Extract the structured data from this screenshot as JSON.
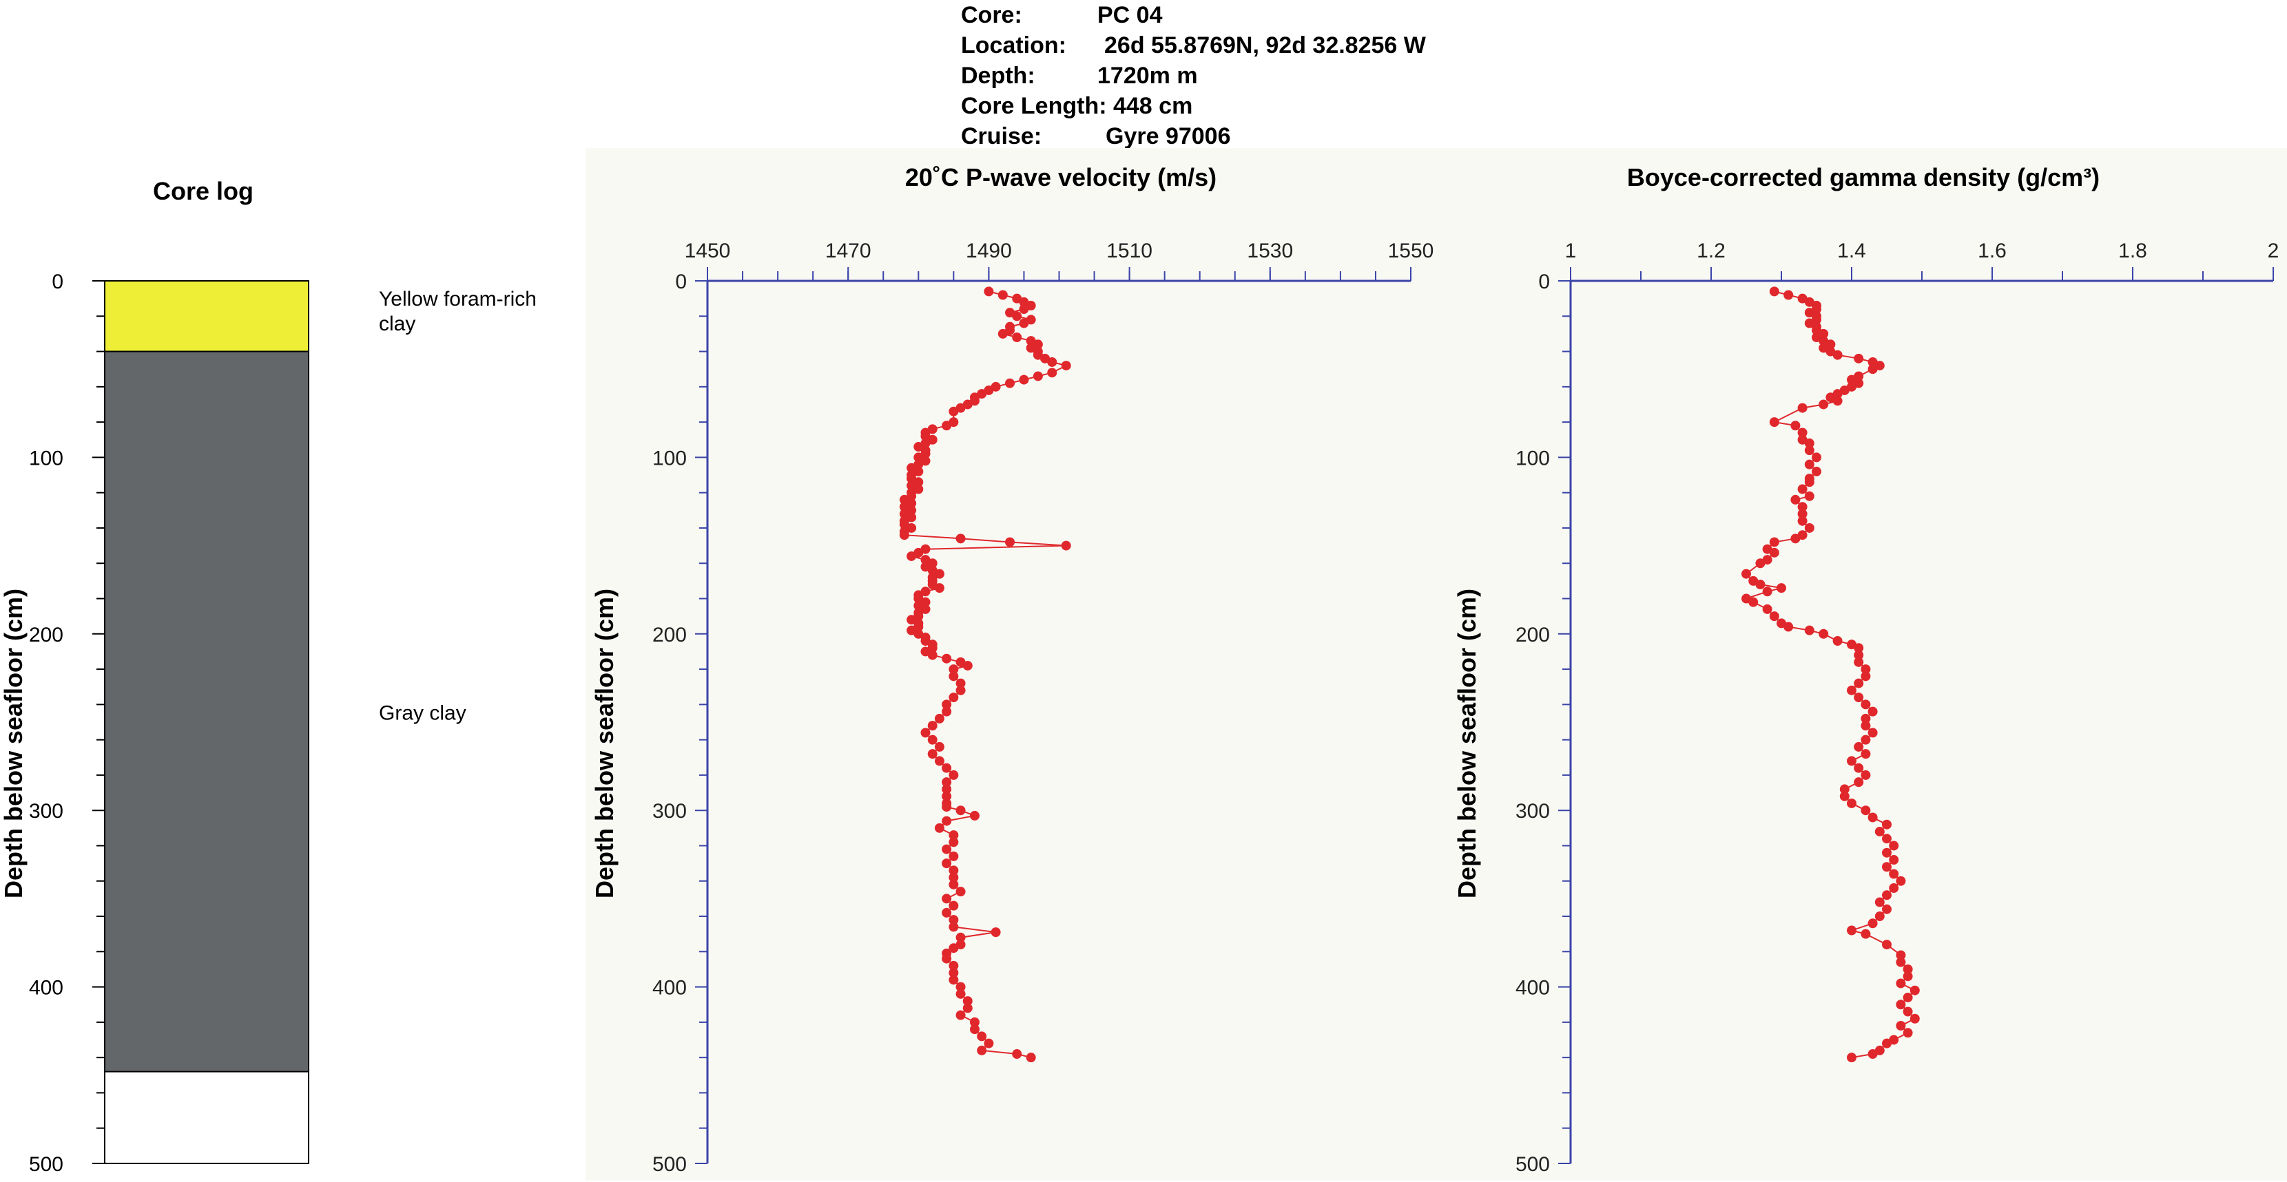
{
  "header": {
    "core": {
      "label": "Core:",
      "value": "PC 04"
    },
    "location": {
      "label": "Location:",
      "value": "26d 55.8769N, 92d 32.8256 W"
    },
    "depth": {
      "label": "Depth:",
      "value": "1720m m"
    },
    "core_length": {
      "label": "Core Length: 448 cm"
    },
    "cruise": {
      "label": "Cruise:",
      "value": "Gyre 97006"
    }
  },
  "colors": {
    "axis": "#3a44a8",
    "series": "#e0282c",
    "yellow_clay": "#eeee36",
    "gray_clay": "#646769",
    "panel_bg": "#f9f9f4"
  },
  "core_log": {
    "title": "Core log",
    "ylabel": "Depth below seafloor (cm)",
    "yticks": [
      "0",
      "100",
      "200",
      "300",
      "400",
      "500"
    ],
    "units": [
      {
        "label": "Yellow foram-rich clay",
        "lines": [
          "Yellow foram-rich",
          "clay"
        ],
        "top": 0,
        "bottom": 40,
        "color": "#eeee36"
      },
      {
        "label": "Gray clay",
        "lines": [
          "Gray clay"
        ],
        "top": 40,
        "bottom": 448,
        "color": "#646769"
      }
    ],
    "ylim": [
      0,
      500
    ]
  },
  "chart_data": [
    {
      "type": "scatter",
      "title": "20˚C P-wave velocity (m/s)",
      "xlabel": "",
      "ylabel": "Depth below seafloor (cm)",
      "xlim": [
        1450,
        1550
      ],
      "ylim": [
        0,
        500
      ],
      "xticks": [
        "1450",
        "1470",
        "1490",
        "1510",
        "1530",
        "1550"
      ],
      "yticks": [
        "0",
        "100",
        "200",
        "300",
        "400",
        "500"
      ],
      "points": [
        [
          1490,
          6
        ],
        [
          1492,
          8
        ],
        [
          1494,
          10
        ],
        [
          1495,
          12
        ],
        [
          1496,
          14
        ],
        [
          1495,
          16
        ],
        [
          1493,
          18
        ],
        [
          1494,
          20
        ],
        [
          1496,
          22
        ],
        [
          1495,
          24
        ],
        [
          1493,
          26
        ],
        [
          1493,
          28
        ],
        [
          1492,
          30
        ],
        [
          1494,
          32
        ],
        [
          1496,
          34
        ],
        [
          1497,
          36
        ],
        [
          1496,
          38
        ],
        [
          1497,
          40
        ],
        [
          1497,
          42
        ],
        [
          1498,
          44
        ],
        [
          1499,
          46
        ],
        [
          1501,
          48
        ],
        [
          1499,
          52
        ],
        [
          1497,
          54
        ],
        [
          1495,
          56
        ],
        [
          1493,
          58
        ],
        [
          1491,
          60
        ],
        [
          1490,
          62
        ],
        [
          1489,
          64
        ],
        [
          1488,
          66
        ],
        [
          1488,
          68
        ],
        [
          1487,
          70
        ],
        [
          1486,
          72
        ],
        [
          1485,
          74
        ],
        [
          1485,
          80
        ],
        [
          1484,
          82
        ],
        [
          1482,
          84
        ],
        [
          1481,
          86
        ],
        [
          1481,
          88
        ],
        [
          1482,
          90
        ],
        [
          1481,
          92
        ],
        [
          1480,
          94
        ],
        [
          1481,
          96
        ],
        [
          1481,
          98
        ],
        [
          1480,
          100
        ],
        [
          1481,
          102
        ],
        [
          1480,
          104
        ],
        [
          1479,
          106
        ],
        [
          1480,
          108
        ],
        [
          1479,
          110
        ],
        [
          1479,
          112
        ],
        [
          1480,
          114
        ],
        [
          1479,
          116
        ],
        [
          1480,
          118
        ],
        [
          1479,
          120
        ],
        [
          1479,
          122
        ],
        [
          1478,
          124
        ],
        [
          1479,
          126
        ],
        [
          1478,
          128
        ],
        [
          1479,
          130
        ],
        [
          1478,
          132
        ],
        [
          1479,
          134
        ],
        [
          1478,
          136
        ],
        [
          1478,
          138
        ],
        [
          1479,
          140
        ],
        [
          1478,
          142
        ],
        [
          1478,
          144
        ],
        [
          1486,
          146
        ],
        [
          1493,
          148
        ],
        [
          1501,
          150
        ],
        [
          1481,
          152
        ],
        [
          1480,
          154
        ],
        [
          1479,
          156
        ],
        [
          1481,
          158
        ],
        [
          1482,
          160
        ],
        [
          1481,
          162
        ],
        [
          1482,
          164
        ],
        [
          1483,
          166
        ],
        [
          1482,
          168
        ],
        [
          1482,
          170
        ],
        [
          1482,
          172
        ],
        [
          1483,
          174
        ],
        [
          1481,
          176
        ],
        [
          1480,
          178
        ],
        [
          1480,
          180
        ],
        [
          1481,
          182
        ],
        [
          1480,
          184
        ],
        [
          1481,
          186
        ],
        [
          1480,
          188
        ],
        [
          1480,
          190
        ],
        [
          1479,
          192
        ],
        [
          1480,
          194
        ],
        [
          1480,
          196
        ],
        [
          1479,
          198
        ],
        [
          1480,
          200
        ],
        [
          1481,
          202
        ],
        [
          1481,
          204
        ],
        [
          1482,
          206
        ],
        [
          1482,
          208
        ],
        [
          1481,
          210
        ],
        [
          1482,
          212
        ],
        [
          1484,
          214
        ],
        [
          1486,
          216
        ],
        [
          1487,
          218
        ],
        [
          1485,
          220
        ],
        [
          1485,
          224
        ],
        [
          1486,
          228
        ],
        [
          1486,
          232
        ],
        [
          1485,
          236
        ],
        [
          1484,
          240
        ],
        [
          1484,
          244
        ],
        [
          1483,
          248
        ],
        [
          1482,
          252
        ],
        [
          1481,
          256
        ],
        [
          1482,
          260
        ],
        [
          1483,
          264
        ],
        [
          1482,
          268
        ],
        [
          1483,
          272
        ],
        [
          1484,
          276
        ],
        [
          1485,
          280
        ],
        [
          1484,
          284
        ],
        [
          1484,
          288
        ],
        [
          1484,
          292
        ],
        [
          1484,
          296
        ],
        [
          1484,
          298
        ],
        [
          1486,
          300
        ],
        [
          1488,
          303
        ],
        [
          1484,
          306
        ],
        [
          1483,
          310
        ],
        [
          1485,
          314
        ],
        [
          1485,
          318
        ],
        [
          1484,
          322
        ],
        [
          1485,
          326
        ],
        [
          1484,
          330
        ],
        [
          1485,
          334
        ],
        [
          1485,
          338
        ],
        [
          1485,
          342
        ],
        [
          1486,
          346
        ],
        [
          1484,
          350
        ],
        [
          1485,
          354
        ],
        [
          1484,
          358
        ],
        [
          1485,
          362
        ],
        [
          1485,
          366
        ],
        [
          1491,
          369
        ],
        [
          1486,
          372
        ],
        [
          1486,
          376
        ],
        [
          1485,
          378
        ],
        [
          1484,
          381
        ],
        [
          1484,
          384
        ],
        [
          1485,
          388
        ],
        [
          1485,
          392
        ],
        [
          1485,
          396
        ],
        [
          1486,
          400
        ],
        [
          1486,
          404
        ],
        [
          1487,
          408
        ],
        [
          1487,
          412
        ],
        [
          1486,
          416
        ],
        [
          1488,
          420
        ],
        [
          1488,
          424
        ],
        [
          1489,
          428
        ],
        [
          1490,
          432
        ],
        [
          1489,
          436
        ],
        [
          1494,
          438
        ],
        [
          1496,
          440
        ]
      ]
    },
    {
      "type": "scatter",
      "title": "Boyce-corrected gamma density (g/cm³)",
      "xlabel": "",
      "ylabel": "Depth below seafloor (cm)",
      "xlim": [
        1,
        2
      ],
      "ylim": [
        0,
        500
      ],
      "xticks": [
        "1",
        "1.2",
        "1.4",
        "1.6",
        "1.8",
        "2"
      ],
      "yticks": [
        "0",
        "100",
        "200",
        "300",
        "400",
        "500"
      ],
      "points": [
        [
          1.29,
          6
        ],
        [
          1.31,
          8
        ],
        [
          1.33,
          10
        ],
        [
          1.34,
          12
        ],
        [
          1.35,
          14
        ],
        [
          1.35,
          16
        ],
        [
          1.34,
          18
        ],
        [
          1.35,
          20
        ],
        [
          1.35,
          22
        ],
        [
          1.34,
          24
        ],
        [
          1.35,
          26
        ],
        [
          1.35,
          28
        ],
        [
          1.36,
          30
        ],
        [
          1.35,
          32
        ],
        [
          1.36,
          34
        ],
        [
          1.37,
          36
        ],
        [
          1.36,
          38
        ],
        [
          1.37,
          40
        ],
        [
          1.38,
          42
        ],
        [
          1.41,
          44
        ],
        [
          1.43,
          46
        ],
        [
          1.44,
          48
        ],
        [
          1.43,
          50
        ],
        [
          1.41,
          54
        ],
        [
          1.4,
          56
        ],
        [
          1.41,
          58
        ],
        [
          1.4,
          60
        ],
        [
          1.39,
          62
        ],
        [
          1.38,
          64
        ],
        [
          1.37,
          66
        ],
        [
          1.38,
          68
        ],
        [
          1.36,
          70
        ],
        [
          1.33,
          72
        ],
        [
          1.29,
          80
        ],
        [
          1.32,
          82
        ],
        [
          1.33,
          86
        ],
        [
          1.33,
          90
        ],
        [
          1.34,
          92
        ],
        [
          1.34,
          96
        ],
        [
          1.35,
          100
        ],
        [
          1.34,
          104
        ],
        [
          1.35,
          108
        ],
        [
          1.34,
          112
        ],
        [
          1.34,
          114
        ],
        [
          1.33,
          118
        ],
        [
          1.34,
          122
        ],
        [
          1.32,
          124
        ],
        [
          1.33,
          128
        ],
        [
          1.33,
          132
        ],
        [
          1.33,
          136
        ],
        [
          1.34,
          140
        ],
        [
          1.33,
          144
        ],
        [
          1.32,
          146
        ],
        [
          1.29,
          148
        ],
        [
          1.28,
          152
        ],
        [
          1.29,
          154
        ],
        [
          1.28,
          158
        ],
        [
          1.27,
          160
        ],
        [
          1.25,
          166
        ],
        [
          1.26,
          170
        ],
        [
          1.27,
          172
        ],
        [
          1.3,
          174
        ],
        [
          1.28,
          176
        ],
        [
          1.25,
          180
        ],
        [
          1.26,
          182
        ],
        [
          1.28,
          186
        ],
        [
          1.29,
          190
        ],
        [
          1.3,
          194
        ],
        [
          1.31,
          196
        ],
        [
          1.34,
          198
        ],
        [
          1.36,
          200
        ],
        [
          1.38,
          204
        ],
        [
          1.4,
          206
        ],
        [
          1.41,
          208
        ],
        [
          1.41,
          212
        ],
        [
          1.41,
          216
        ],
        [
          1.42,
          220
        ],
        [
          1.42,
          224
        ],
        [
          1.41,
          228
        ],
        [
          1.4,
          232
        ],
        [
          1.41,
          236
        ],
        [
          1.42,
          240
        ],
        [
          1.43,
          244
        ],
        [
          1.42,
          248
        ],
        [
          1.42,
          252
        ],
        [
          1.43,
          256
        ],
        [
          1.42,
          260
        ],
        [
          1.41,
          264
        ],
        [
          1.42,
          268
        ],
        [
          1.4,
          272
        ],
        [
          1.41,
          276
        ],
        [
          1.42,
          280
        ],
        [
          1.41,
          284
        ],
        [
          1.39,
          288
        ],
        [
          1.39,
          292
        ],
        [
          1.4,
          296
        ],
        [
          1.42,
          300
        ],
        [
          1.43,
          304
        ],
        [
          1.45,
          308
        ],
        [
          1.44,
          312
        ],
        [
          1.45,
          316
        ],
        [
          1.46,
          320
        ],
        [
          1.45,
          324
        ],
        [
          1.46,
          328
        ],
        [
          1.45,
          332
        ],
        [
          1.46,
          336
        ],
        [
          1.47,
          340
        ],
        [
          1.46,
          344
        ],
        [
          1.45,
          348
        ],
        [
          1.44,
          352
        ],
        [
          1.45,
          356
        ],
        [
          1.44,
          360
        ],
        [
          1.43,
          364
        ],
        [
          1.4,
          368
        ],
        [
          1.42,
          370
        ],
        [
          1.45,
          376
        ],
        [
          1.47,
          382
        ],
        [
          1.47,
          386
        ],
        [
          1.48,
          390
        ],
        [
          1.48,
          394
        ],
        [
          1.47,
          398
        ],
        [
          1.49,
          402
        ],
        [
          1.48,
          406
        ],
        [
          1.47,
          410
        ],
        [
          1.48,
          414
        ],
        [
          1.49,
          418
        ],
        [
          1.47,
          422
        ],
        [
          1.48,
          426
        ],
        [
          1.46,
          430
        ],
        [
          1.45,
          432
        ],
        [
          1.44,
          436
        ],
        [
          1.43,
          438
        ],
        [
          1.4,
          440
        ]
      ]
    }
  ]
}
